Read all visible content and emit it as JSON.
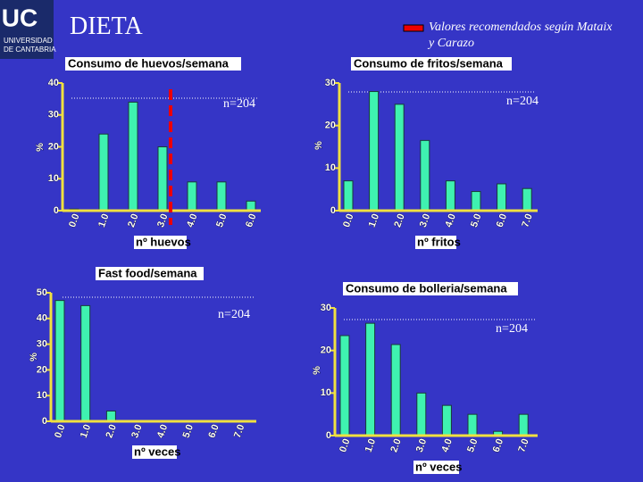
{
  "header": {
    "logo": "UC",
    "university": [
      "UNIVERSIDAD",
      "DE CANTABRIA"
    ],
    "title": "DIETA",
    "legend": [
      "Valores recomendados según Mataix",
      "y Carazo"
    ]
  },
  "chart_data": [
    {
      "type": "bar",
      "title": "Consumo de huevos/semana",
      "x_label": "nº huevos",
      "y_label": "%",
      "annotation": "n=204",
      "color": "#3ff2b0",
      "categories": [
        "0.0",
        "1.0",
        "2.0",
        "3.0",
        "4.0",
        "5.0",
        "6.0"
      ],
      "values": [
        0.5,
        24,
        34,
        20,
        9,
        9,
        3
      ],
      "ylim": [
        0,
        40
      ],
      "yticks": [
        0,
        10,
        20,
        30,
        40
      ]
    },
    {
      "type": "bar",
      "title": "Consumo de fritos/semana",
      "x_label": "nº fritos",
      "y_label": "%",
      "annotation": "n=204",
      "color": "#3ff2b0",
      "categories": [
        "0.0",
        "1.0",
        "2.0",
        "3.0",
        "4.0",
        "5.0",
        "6.0",
        "7.0"
      ],
      "values": [
        7,
        28,
        25,
        16.5,
        7,
        4.5,
        6.3,
        5.2
      ],
      "ylim": [
        0,
        30
      ],
      "yticks": [
        0,
        10,
        20,
        30
      ]
    },
    {
      "type": "bar",
      "title": "Fast food/semana",
      "x_label": "nº veces",
      "y_label": "%",
      "annotation": "n=204",
      "color": "#3ff2b0",
      "categories": [
        "0.0",
        "1.0",
        "2.0",
        "3.0",
        "4.0",
        "5.0",
        "6.0",
        "7.0"
      ],
      "values": [
        47,
        45,
        4,
        0,
        0,
        0,
        0,
        0
      ],
      "ylim": [
        0,
        50
      ],
      "yticks": [
        0,
        10,
        20,
        30,
        40,
        50
      ]
    },
    {
      "type": "bar",
      "title": "Consumo de bolleria/semana",
      "x_label": "nº veces",
      "y_label": "%",
      "annotation": "n=204",
      "color": "#3ff2b0",
      "categories": [
        "0.0",
        "1.0",
        "2.0",
        "3.0",
        "4.0",
        "5.0",
        "6.0",
        "7.0"
      ],
      "values": [
        23.5,
        26.4,
        21.4,
        10,
        7.1,
        5,
        1,
        5
      ],
      "ylim": [
        0,
        30
      ],
      "yticks": [
        0,
        10,
        20,
        30
      ]
    }
  ]
}
